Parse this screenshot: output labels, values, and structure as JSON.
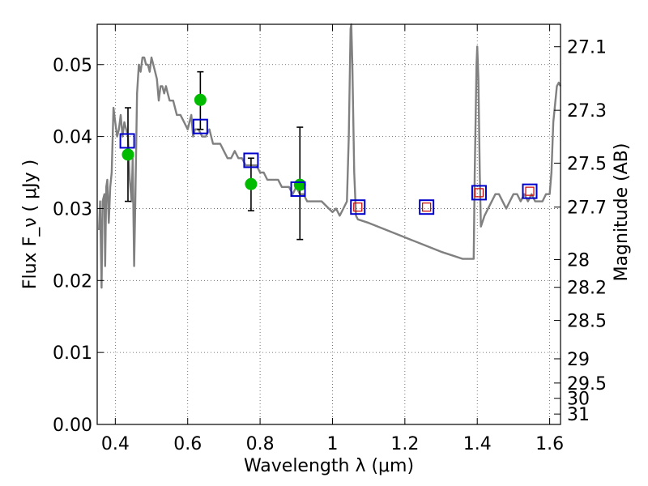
{
  "chart_data": {
    "type": "scatter",
    "xlabel": "Wavelength  λ (μm)",
    "ylabel_left": "Flux  F_ν  ( μJy )",
    "ylabel_right": "Magnitude (AB)",
    "xlim": [
      0.35,
      1.63
    ],
    "ylim": [
      0.0,
      0.0556
    ],
    "grid": true,
    "x_ticks": [
      {
        "value": 0.4,
        "label": "0.4"
      },
      {
        "value": 0.6,
        "label": "0.6"
      },
      {
        "value": 0.8,
        "label": "0.8"
      },
      {
        "value": 1.0,
        "label": "1"
      },
      {
        "value": 1.2,
        "label": "1.2"
      },
      {
        "value": 1.4,
        "label": "1.4"
      },
      {
        "value": 1.6,
        "label": "1.6"
      }
    ],
    "y_ticks": [
      {
        "value": 0.0,
        "label": "0.00"
      },
      {
        "value": 0.01,
        "label": "0.01"
      },
      {
        "value": 0.02,
        "label": "0.02"
      },
      {
        "value": 0.03,
        "label": "0.03"
      },
      {
        "value": 0.04,
        "label": "0.04"
      },
      {
        "value": 0.05,
        "label": "0.05"
      }
    ],
    "right_ticks": [
      "27.1",
      "27.3",
      "27.5",
      "27.7",
      "28",
      "28.2",
      "28.5",
      "29",
      "29.5",
      "30",
      "31"
    ],
    "model_spectrum": {
      "color": "#808080",
      "points": [
        [
          0.355,
          0.027
        ],
        [
          0.358,
          0.031
        ],
        [
          0.362,
          0.019
        ],
        [
          0.365,
          0.031
        ],
        [
          0.37,
          0.032
        ],
        [
          0.372,
          0.022
        ],
        [
          0.375,
          0.033
        ],
        [
          0.378,
          0.034
        ],
        [
          0.382,
          0.028
        ],
        [
          0.386,
          0.033
        ],
        [
          0.39,
          0.035
        ],
        [
          0.395,
          0.044
        ],
        [
          0.4,
          0.042
        ],
        [
          0.405,
          0.04
        ],
        [
          0.41,
          0.041
        ],
        [
          0.415,
          0.043
        ],
        [
          0.42,
          0.04
        ],
        [
          0.425,
          0.042
        ],
        [
          0.43,
          0.041
        ],
        [
          0.435,
          0.04
        ],
        [
          0.44,
          0.034
        ],
        [
          0.445,
          0.031
        ],
        [
          0.448,
          0.037
        ],
        [
          0.452,
          0.022
        ],
        [
          0.455,
          0.03
        ],
        [
          0.46,
          0.046
        ],
        [
          0.465,
          0.05
        ],
        [
          0.47,
          0.049
        ],
        [
          0.475,
          0.051
        ],
        [
          0.48,
          0.051
        ],
        [
          0.485,
          0.05
        ],
        [
          0.49,
          0.05
        ],
        [
          0.495,
          0.049
        ],
        [
          0.5,
          0.051
        ],
        [
          0.505,
          0.05
        ],
        [
          0.51,
          0.049
        ],
        [
          0.515,
          0.048
        ],
        [
          0.52,
          0.045
        ],
        [
          0.525,
          0.047
        ],
        [
          0.53,
          0.047
        ],
        [
          0.535,
          0.046
        ],
        [
          0.54,
          0.047
        ],
        [
          0.545,
          0.046
        ],
        [
          0.55,
          0.045
        ],
        [
          0.56,
          0.045
        ],
        [
          0.57,
          0.043
        ],
        [
          0.58,
          0.043
        ],
        [
          0.59,
          0.042
        ],
        [
          0.6,
          0.041
        ],
        [
          0.61,
          0.043
        ],
        [
          0.615,
          0.04
        ],
        [
          0.62,
          0.041
        ],
        [
          0.63,
          0.041
        ],
        [
          0.64,
          0.04
        ],
        [
          0.65,
          0.04
        ],
        [
          0.66,
          0.041
        ],
        [
          0.67,
          0.039
        ],
        [
          0.68,
          0.039
        ],
        [
          0.69,
          0.039
        ],
        [
          0.7,
          0.038
        ],
        [
          0.71,
          0.037
        ],
        [
          0.72,
          0.037
        ],
        [
          0.73,
          0.038
        ],
        [
          0.74,
          0.037
        ],
        [
          0.75,
          0.037
        ],
        [
          0.76,
          0.036
        ],
        [
          0.77,
          0.036
        ],
        [
          0.78,
          0.036
        ],
        [
          0.79,
          0.036
        ],
        [
          0.8,
          0.035
        ],
        [
          0.81,
          0.035
        ],
        [
          0.82,
          0.034
        ],
        [
          0.83,
          0.034
        ],
        [
          0.84,
          0.034
        ],
        [
          0.85,
          0.034
        ],
        [
          0.86,
          0.033
        ],
        [
          0.87,
          0.033
        ],
        [
          0.88,
          0.033
        ],
        [
          0.89,
          0.032
        ],
        [
          0.9,
          0.033
        ],
        [
          0.91,
          0.032
        ],
        [
          0.92,
          0.032
        ],
        [
          0.93,
          0.031
        ],
        [
          0.94,
          0.031
        ],
        [
          0.95,
          0.031
        ],
        [
          0.96,
          0.031
        ],
        [
          0.97,
          0.031
        ],
        [
          0.98,
          0.0305
        ],
        [
          0.99,
          0.03
        ],
        [
          1.0,
          0.0295
        ],
        [
          1.01,
          0.03
        ],
        [
          1.02,
          0.029
        ],
        [
          1.03,
          0.03
        ],
        [
          1.04,
          0.031
        ],
        [
          1.045,
          0.04
        ],
        [
          1.05,
          0.055
        ],
        [
          1.052,
          0.0556
        ],
        [
          1.055,
          0.05
        ],
        [
          1.06,
          0.035
        ],
        [
          1.065,
          0.029
        ],
        [
          1.07,
          0.0285
        ],
        [
          1.1,
          0.028
        ],
        [
          1.15,
          0.027
        ],
        [
          1.2,
          0.026
        ],
        [
          1.25,
          0.025
        ],
        [
          1.3,
          0.024
        ],
        [
          1.33,
          0.0235
        ],
        [
          1.36,
          0.023
        ],
        [
          1.39,
          0.023
        ],
        [
          1.393,
          0.035
        ],
        [
          1.398,
          0.05
        ],
        [
          1.4,
          0.0525
        ],
        [
          1.403,
          0.048
        ],
        [
          1.407,
          0.035
        ],
        [
          1.41,
          0.0275
        ],
        [
          1.42,
          0.029
        ],
        [
          1.43,
          0.03
        ],
        [
          1.44,
          0.031
        ],
        [
          1.45,
          0.032
        ],
        [
          1.46,
          0.032
        ],
        [
          1.47,
          0.031
        ],
        [
          1.48,
          0.03
        ],
        [
          1.49,
          0.031
        ],
        [
          1.5,
          0.032
        ],
        [
          1.51,
          0.032
        ],
        [
          1.52,
          0.031
        ],
        [
          1.53,
          0.032
        ],
        [
          1.54,
          0.031
        ],
        [
          1.55,
          0.032
        ],
        [
          1.56,
          0.031
        ],
        [
          1.57,
          0.031
        ],
        [
          1.58,
          0.031
        ],
        [
          1.59,
          0.032
        ],
        [
          1.6,
          0.032
        ],
        [
          1.605,
          0.035
        ],
        [
          1.61,
          0.042
        ],
        [
          1.62,
          0.047
        ],
        [
          1.625,
          0.0475
        ],
        [
          1.63,
          0.047
        ]
      ]
    },
    "observed": {
      "color": "#00bb00",
      "points": [
        {
          "x": 0.435,
          "y": 0.0375,
          "yerr_low": 0.031,
          "yerr_high": 0.044
        },
        {
          "x": 0.635,
          "y": 0.0451,
          "yerr_low": 0.041,
          "yerr_high": 0.049
        },
        {
          "x": 0.775,
          "y": 0.0334,
          "yerr_low": 0.0297,
          "yerr_high": 0.037
        },
        {
          "x": 0.91,
          "y": 0.0333,
          "yerr_low": 0.0257,
          "yerr_high": 0.0413
        }
      ]
    },
    "model_photometry_blue": {
      "color": "#0000cc",
      "points": [
        [
          0.433,
          0.0394
        ],
        [
          0.635,
          0.0414
        ],
        [
          0.775,
          0.0367
        ],
        [
          0.905,
          0.0327
        ],
        [
          1.07,
          0.0302
        ],
        [
          1.26,
          0.0302
        ],
        [
          1.405,
          0.0322
        ],
        [
          1.545,
          0.0324
        ]
      ]
    },
    "model_photometry_red": {
      "color": "#cc0000",
      "points": [
        [
          1.07,
          0.0302
        ],
        [
          1.26,
          0.0302
        ],
        [
          1.405,
          0.0322
        ],
        [
          1.545,
          0.0324
        ]
      ]
    }
  }
}
